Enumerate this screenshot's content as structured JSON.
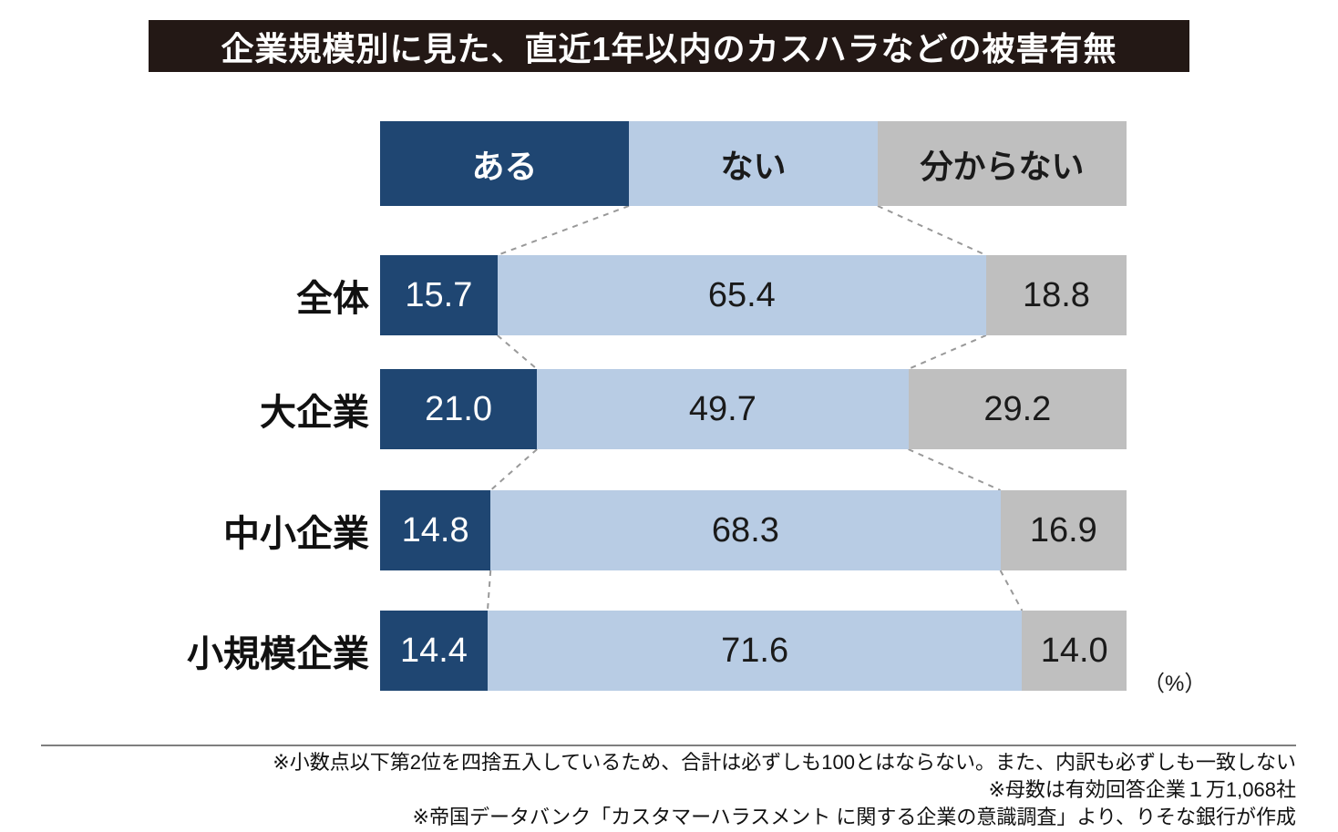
{
  "title": "企業規模別に見た、直近1年以内のカスハラなどの被害有無",
  "unit_label": "（%）",
  "legend": {
    "items": [
      {
        "label": "ある"
      },
      {
        "label": "ない"
      },
      {
        "label": "分からない"
      }
    ]
  },
  "rows": [
    {
      "label": "全体",
      "values": [
        "15.7",
        "65.4",
        "18.8"
      ]
    },
    {
      "label": "大企業",
      "values": [
        "21.0",
        "49.7",
        "29.2"
      ]
    },
    {
      "label": "中小企業",
      "values": [
        "14.8",
        "68.3",
        "16.9"
      ]
    },
    {
      "label": "小規模企業",
      "values": [
        "14.4",
        "71.6",
        "14.0"
      ]
    }
  ],
  "footnotes": [
    "※小数点以下第2位を四捨五入しているため、合計は必ずしも100とはならない。また、内訳も必ずしも一致しない",
    "※母数は有効回答企業１万1,068社",
    "※帝国データバンク「カスタマーハラスメント に関する企業の意識調査」より、りそな銀行が作成"
  ],
  "colors": {
    "aru": "#1F4672",
    "nai": "#B8CCE4",
    "wakaranai": "#BFBFBF",
    "banner": "#231815",
    "connector": "#999999"
  },
  "chart_data": {
    "type": "bar",
    "orientation": "horizontal",
    "stacked": true,
    "title": "企業規模別に見た、直近1年以内のカスハラなどの被害有無",
    "categories": [
      "全体",
      "大企業",
      "中小企業",
      "小規模企業"
    ],
    "series": [
      {
        "name": "ある",
        "values": [
          15.7,
          21.0,
          14.8,
          14.4
        ],
        "color": "#1F4672"
      },
      {
        "name": "ない",
        "values": [
          65.4,
          49.7,
          68.3,
          71.6
        ],
        "color": "#B8CCE4"
      },
      {
        "name": "分からない",
        "values": [
          18.8,
          29.2,
          16.9,
          14.0
        ],
        "color": "#BFBFBF"
      }
    ],
    "unit": "%",
    "xlim": [
      0,
      100
    ],
    "legend_position": "top",
    "grid": false,
    "annotations": [
      "※小数点以下第2位を四捨五入しているため、合計は必ずしも100とはならない。また、内訳も必ずしも一致しない",
      "※母数は有効回答企業１万1,068社",
      "※帝国データバンク「カスタマーハラスメント に関する企業の意識調査」より、りそな銀行が作成"
    ]
  }
}
